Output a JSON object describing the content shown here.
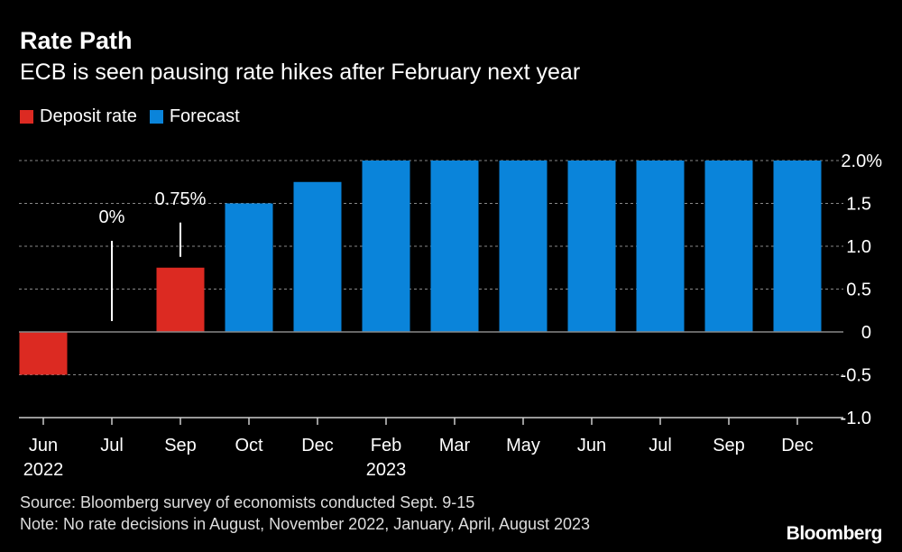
{
  "chart_data": {
    "type": "bar",
    "title": "Rate Path",
    "subtitle": "ECB is seen pausing rate hikes after February next year",
    "categories": [
      "Jun",
      "Jul",
      "Sep",
      "Oct",
      "Dec",
      "Feb",
      "Mar",
      "May",
      "Jun",
      "Jul",
      "Sep",
      "Dec"
    ],
    "year_labels": [
      "2022",
      "",
      "",
      "",
      "",
      "2023",
      "",
      "",
      "",
      "",
      "",
      ""
    ],
    "values": [
      -0.5,
      0,
      0.75,
      1.5,
      1.75,
      2.0,
      2.0,
      2.0,
      2.0,
      2.0,
      2.0,
      2.0
    ],
    "series_type": [
      "Deposit rate",
      "Deposit rate",
      "Deposit rate",
      "Forecast",
      "Forecast",
      "Forecast",
      "Forecast",
      "Forecast",
      "Forecast",
      "Forecast",
      "Forecast",
      "Forecast"
    ],
    "legend": [
      {
        "name": "Deposit rate",
        "color": "#dc2a22"
      },
      {
        "name": "Forecast",
        "color": "#0a84da"
      }
    ],
    "annotations": [
      {
        "category_index": 1,
        "text": "0%"
      },
      {
        "category_index": 2,
        "text": "0.75%"
      }
    ],
    "ylim": [
      -1.0,
      2.0
    ],
    "yticks": [
      -1.0,
      -0.5,
      0,
      0.5,
      1.0,
      1.5,
      2.0
    ],
    "ytick_labels": [
      "-1.0",
      "-0.5",
      "0",
      "0.5",
      "1.0",
      "1.5",
      "2.0%"
    ],
    "grid": true,
    "yaxis_position": "right",
    "legend_placement": "top-left"
  },
  "footer": {
    "source": "Source: Bloomberg survey of economists conducted Sept. 9-15",
    "note": "Note: No rate decisions in August, November 2022, January, April, August 2023",
    "logo": "Bloomberg"
  }
}
